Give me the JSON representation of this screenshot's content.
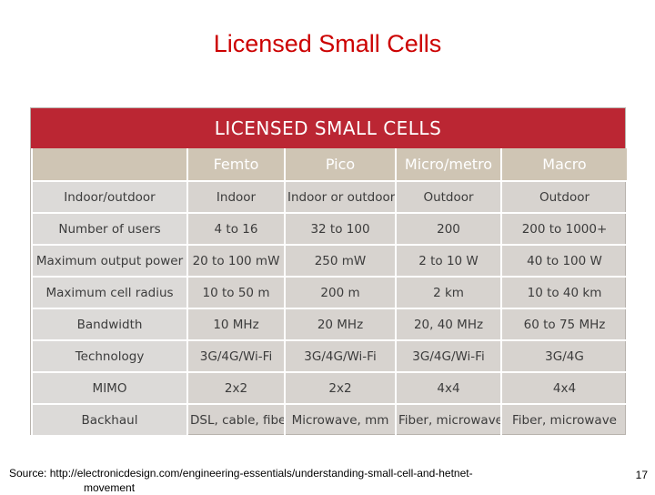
{
  "slide": {
    "title": "Licensed Small Cells",
    "source_line1": "Source: http://electronicdesign.com/engineering-essentials/understanding-small-cell-and-hetnet-",
    "source_line2": "movement",
    "page_number": "17"
  },
  "table": {
    "banner": "LICENSED SMALL CELLS",
    "columns": [
      "",
      "Femto",
      "Pico",
      "Micro/metro",
      "Macro"
    ],
    "rows": [
      {
        "label": "Indoor/outdoor",
        "values": [
          "Indoor",
          "Indoor or outdoor",
          "Outdoor",
          "Outdoor"
        ]
      },
      {
        "label": "Number of users",
        "values": [
          "4 to 16",
          "32 to 100",
          "200",
          "200 to 1000+"
        ]
      },
      {
        "label": "Maximum output power",
        "values": [
          "20 to 100 mW",
          "250 mW",
          "2 to 10 W",
          "40 to 100 W"
        ]
      },
      {
        "label": "Maximum cell radius",
        "values": [
          "10 to 50 m",
          "200 m",
          "2 km",
          "10 to 40 km"
        ]
      },
      {
        "label": "Bandwidth",
        "values": [
          "10 MHz",
          "20 MHz",
          "20, 40 MHz",
          "60 to 75 MHz"
        ]
      },
      {
        "label": "Technology",
        "values": [
          "3G/4G/Wi-Fi",
          "3G/4G/Wi-Fi",
          "3G/4G/Wi-Fi",
          "3G/4G"
        ]
      },
      {
        "label": "MIMO",
        "values": [
          "2x2",
          "2x2",
          "4x4",
          "4x4"
        ]
      },
      {
        "label": "Backhaul",
        "values": [
          "DSL, cable, fiber",
          "Microwave, mm",
          "Fiber, microwave",
          "Fiber, microwave"
        ]
      }
    ]
  }
}
